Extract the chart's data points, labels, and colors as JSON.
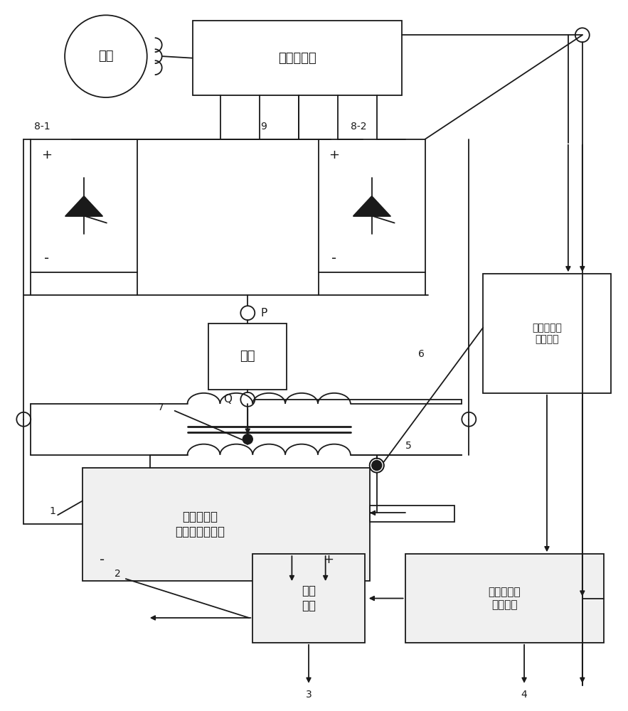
{
  "bg": "#ffffff",
  "lc": "#1a1a1a",
  "lw": 1.3,
  "labels": {
    "diangwang": "电网",
    "yixiang": "移相变压器",
    "fuzai": "负载",
    "liubeipindian": "六倍频电流\n三角波逆变电路",
    "qudong": "驱动\n电路",
    "xinhaochuli": "信号处理及\n控制电路",
    "tongbu": "同步及相位\n控制电路",
    "label_81": "8-1",
    "label_82": "8-2",
    "label_9": "9",
    "label_P": "P",
    "label_Q": "Q",
    "label_1": "1",
    "label_2": "2",
    "label_3": "3",
    "label_4": "4",
    "label_5": "5",
    "label_6": "6",
    "label_7": "7",
    "plus": "+",
    "minus": "-"
  }
}
